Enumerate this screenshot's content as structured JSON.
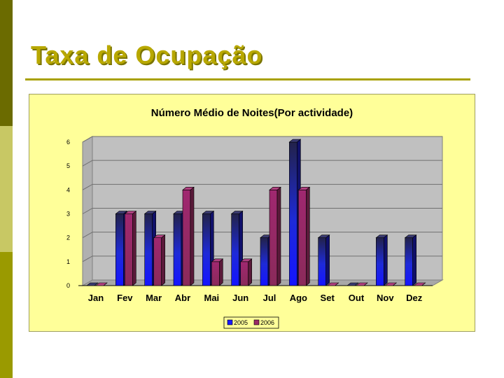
{
  "slide": {
    "title": "Taxa de Ocupação"
  },
  "chart_data": {
    "type": "bar",
    "title": "Número Médio de Noites(Por actividade)",
    "xlabel": "",
    "ylabel": "",
    "categories": [
      "Jan",
      "Fev",
      "Mar",
      "Abr",
      "Mai",
      "Jun",
      "Jul",
      "Ago",
      "Set",
      "Out",
      "Nov",
      "Dez"
    ],
    "series": [
      {
        "name": "2005",
        "values": [
          0,
          3,
          3,
          3,
          3,
          3,
          2,
          6,
          2,
          0,
          2,
          2
        ],
        "color": "#1a1aff"
      },
      {
        "name": "2006",
        "values": [
          0,
          3,
          2,
          4,
          1,
          1,
          4,
          4,
          0,
          0,
          0,
          0
        ],
        "color": "#9a2a66"
      }
    ],
    "ylim": [
      0,
      6
    ],
    "yticks": [
      "0",
      "1",
      "2",
      "3",
      "4",
      "5",
      "6"
    ],
    "grid": true,
    "legend": "bottom",
    "background": "#ffff99",
    "plot_background": "#c0c0c0"
  }
}
